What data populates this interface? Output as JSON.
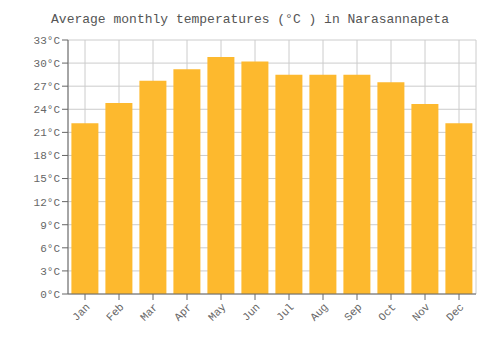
{
  "chart_data": {
    "type": "bar",
    "title": "Average monthly temperatures (°C ) in Narasannapeta",
    "categories": [
      "Jan",
      "Feb",
      "Mar",
      "Apr",
      "May",
      "Jun",
      "Jul",
      "Aug",
      "Sep",
      "Oct",
      "Nov",
      "Dec"
    ],
    "values": [
      22.2,
      24.8,
      27.7,
      29.2,
      30.8,
      30.2,
      28.5,
      28.5,
      28.5,
      27.5,
      24.7,
      22.2
    ],
    "color": "#FDB92E",
    "ylim": [
      0,
      33
    ],
    "yticks": [
      {
        "value": 0,
        "label": "0°C"
      },
      {
        "value": 3,
        "label": "3°C"
      },
      {
        "value": 6,
        "label": "6°C"
      },
      {
        "value": 9,
        "label": "9°C"
      },
      {
        "value": 12,
        "label": "12°C"
      },
      {
        "value": 15,
        "label": "15°C"
      },
      {
        "value": 18,
        "label": "18°C"
      },
      {
        "value": 21,
        "label": "21°C"
      },
      {
        "value": 24,
        "label": "24°C"
      },
      {
        "value": 27,
        "label": "27°C"
      },
      {
        "value": 30,
        "label": "30°C"
      },
      {
        "value": 33,
        "label": "33°C"
      }
    ],
    "grid": true
  }
}
